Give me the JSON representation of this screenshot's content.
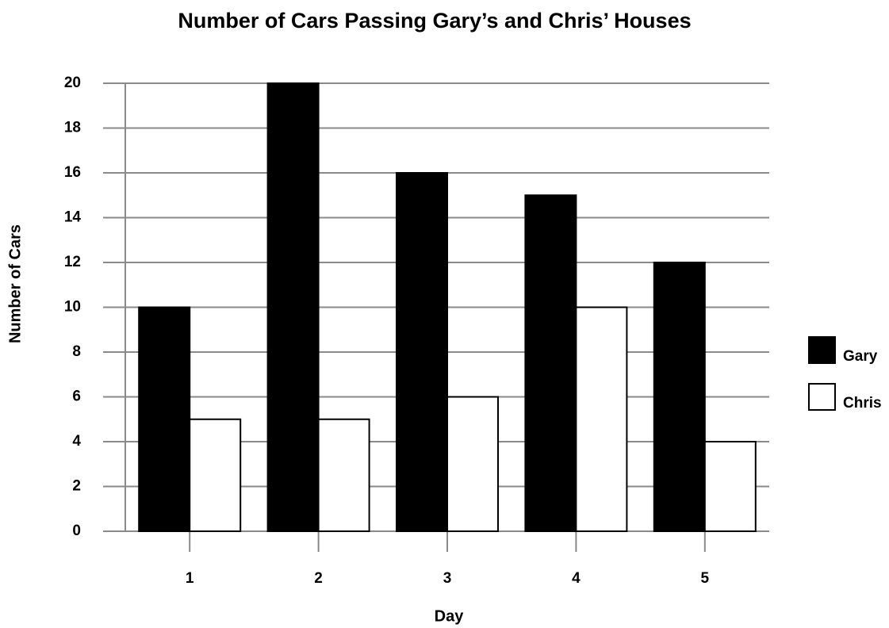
{
  "chart_data": {
    "type": "bar",
    "title": "Number of Cars Passing Gary’s and Chris’ Houses",
    "x_label": "Day",
    "y_label": "Number of Cars",
    "categories": [
      "1",
      "2",
      "3",
      "4",
      "5"
    ],
    "series": [
      {
        "name": "Gary",
        "color": "#000000",
        "values": [
          10,
          20,
          16,
          15,
          12
        ]
      },
      {
        "name": "Chris",
        "color": "#ffffff",
        "values": [
          5,
          5,
          6,
          10,
          4
        ]
      }
    ],
    "ylim": [
      0,
      20
    ],
    "yticks": [
      0,
      2,
      4,
      6,
      8,
      10,
      12,
      14,
      16,
      18,
      20
    ],
    "grid": true,
    "legend": "right"
  }
}
